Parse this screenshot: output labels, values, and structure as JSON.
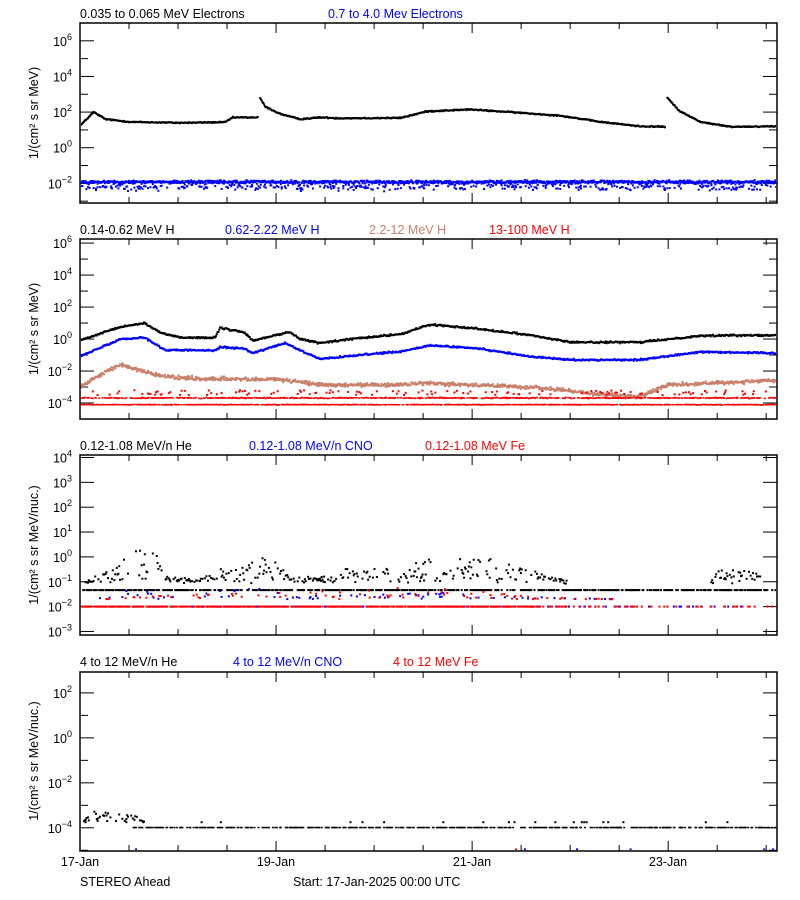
{
  "colors": {
    "black": "#000000",
    "blue": "#0000ff",
    "brown": "#c8806a",
    "red": "#ff0000"
  },
  "x_axis": {
    "type": "date",
    "xlim": [
      "2025-01-17 00:00",
      "2025-01-24 02:40"
    ],
    "tick_labels": [
      "17-Jan",
      "19-Jan",
      "21-Jan",
      "23-Jan"
    ],
    "tick_days": [
      0,
      2,
      4,
      6
    ]
  },
  "footer": {
    "spacecraft": "STEREO Ahead",
    "start": "Start: 17-Jan-2025 00:00 UTC"
  },
  "chart_data": [
    {
      "type": "scatter",
      "ylabel": "1/(cm² s sr MeV)",
      "yscale": "log",
      "ylim": [
        0.00079,
        10000000
      ],
      "ytick_exponents": [
        6,
        4,
        2,
        0,
        -2
      ],
      "series": [
        {
          "name": "0.035 to 0.065 MeV Electrons",
          "color": "#000000",
          "points": [
            [
              0,
              17
            ],
            [
              0.14,
              100
            ],
            [
              0.26,
              40
            ],
            [
              0.51,
              28
            ],
            [
              1.02,
              25
            ],
            [
              1.48,
              27
            ],
            [
              1.56,
              50
            ],
            [
              1.82,
              50
            ],
            null,
            [
              1.83,
              700
            ],
            [
              1.89,
              200
            ],
            [
              2.04,
              80
            ],
            [
              2.24,
              40
            ],
            [
              2.45,
              50
            ],
            [
              2.65,
              45
            ],
            [
              3.27,
              47
            ],
            [
              3.54,
              110
            ],
            [
              3.98,
              140
            ],
            [
              4.39,
              100
            ],
            [
              4.9,
              63
            ],
            [
              5.31,
              28
            ],
            [
              5.71,
              16
            ],
            [
              5.97,
              15
            ],
            null,
            [
              5.99,
              630
            ],
            [
              6.12,
              110
            ],
            [
              6.33,
              28
            ],
            [
              6.63,
              15
            ],
            [
              7.11,
              16
            ]
          ]
        },
        {
          "name": "0.7 to 4.0 Mev Electrons",
          "color": "#0000ff",
          "points": [
            [
              0,
              0.012
            ],
            [
              7.11,
              0.012
            ]
          ]
        }
      ]
    },
    {
      "type": "scatter",
      "ylabel": "1/(cm² s sr MeV)",
      "yscale": "log",
      "ylim": [
        1e-05,
        1800000
      ],
      "ytick_exponents": [
        6,
        4,
        2,
        0,
        -2,
        -4
      ],
      "series": [
        {
          "name": "0.14-0.62 MeV H",
          "color": "#000000",
          "points": [
            [
              0,
              0.8
            ],
            [
              0.41,
              5.6
            ],
            [
              0.66,
              10
            ],
            [
              0.82,
              2.5
            ],
            [
              1.02,
              1.26
            ],
            [
              1.38,
              1.2
            ],
            [
              1.43,
              5
            ],
            [
              1.68,
              2.5
            ],
            [
              1.76,
              0.8
            ],
            [
              2.14,
              2.8
            ],
            [
              2.24,
              1
            ],
            [
              2.45,
              0.56
            ],
            [
              2.76,
              1
            ],
            [
              3.27,
              2
            ],
            [
              3.57,
              8
            ],
            [
              3.98,
              5
            ],
            [
              4.59,
              1.8
            ],
            [
              5.0,
              0.63
            ],
            [
              5.71,
              0.63
            ],
            [
              6.33,
              1.6
            ],
            [
              7.11,
              1.8
            ]
          ]
        },
        {
          "name": "0.62-2.22 MeV H",
          "color": "#0000ff",
          "points": [
            [
              0,
              0.08
            ],
            [
              0.41,
              1
            ],
            [
              0.66,
              1.26
            ],
            [
              0.87,
              0.2
            ],
            [
              1.38,
              0.2
            ],
            [
              1.43,
              0.32
            ],
            [
              1.68,
              0.25
            ],
            [
              1.76,
              0.13
            ],
            [
              2.09,
              0.56
            ],
            [
              2.24,
              0.2
            ],
            [
              2.45,
              0.056
            ],
            [
              3.06,
              0.13
            ],
            [
              3.27,
              0.16
            ],
            [
              3.57,
              0.4
            ],
            [
              4.08,
              0.25
            ],
            [
              4.59,
              0.08
            ],
            [
              5.0,
              0.05
            ],
            [
              5.71,
              0.05
            ],
            [
              6.33,
              0.16
            ],
            [
              7.11,
              0.13
            ]
          ]
        },
        {
          "name": "2.2-12 MeV H",
          "color": "#c8806a",
          "points": [
            [
              0,
              0.001
            ],
            [
              0.2,
              0.0056
            ],
            [
              0.41,
              0.025
            ],
            [
              0.82,
              0.005
            ],
            [
              1.22,
              0.0032
            ],
            [
              2.04,
              0.003
            ],
            [
              2.45,
              0.0014
            ],
            [
              3.16,
              0.0013
            ],
            [
              3.57,
              0.0018
            ],
            [
              4.69,
              0.0009
            ],
            [
              5.31,
              0.00035
            ],
            [
              5.71,
              0.00025
            ],
            [
              6.0,
              0.0014
            ],
            [
              7.11,
              0.0025
            ]
          ]
        },
        {
          "name": "13-100 MeV H",
          "color": "#ff0000",
          "points": [
            [
              0,
              0.0001
            ],
            [
              7.11,
              0.0001
            ]
          ]
        }
      ]
    },
    {
      "type": "scatter",
      "ylabel": "1/(cm² s sr MeV/nuc.)",
      "yscale": "log",
      "ylim": [
        0.00072,
        12600
      ],
      "ytick_exponents": [
        4,
        3,
        2,
        1,
        0,
        -1,
        -2,
        -3
      ],
      "series": [
        {
          "name": "0.12-1.08 MeV/n He",
          "color": "#000000",
          "floor": 0.046,
          "points": [
            [
              0,
              0.046
            ],
            [
              0.3,
              0.2
            ],
            [
              0.61,
              2.5
            ],
            [
              0.77,
              1.6
            ],
            [
              0.87,
              0.1
            ],
            [
              1.4,
              0.1
            ],
            [
              1.45,
              0.3
            ],
            [
              1.68,
              0.25
            ],
            [
              1.94,
              1.26
            ],
            [
              2.14,
              0.1
            ],
            [
              2.65,
              0.1
            ],
            [
              2.7,
              0.25
            ],
            [
              3.27,
              0.25
            ],
            [
              3.57,
              0.6
            ],
            [
              3.88,
              0.8
            ],
            [
              4.29,
              0.4
            ],
            [
              4.59,
              0.2
            ],
            [
              4.9,
              0.1
            ],
            [
              5.0,
              0.046
            ],
            [
              6.4,
              0.046
            ],
            [
              6.5,
              0.25
            ],
            [
              6.9,
              0.25
            ],
            [
              7.0,
              0.046
            ],
            [
              7.11,
              0.046
            ]
          ]
        },
        {
          "name": "0.12-1.08 MeV/n CNO",
          "color": "#0000ff",
          "floor": 0.01,
          "points": [
            [
              0,
              0.01
            ],
            [
              0.4,
              0.045
            ],
            [
              0.8,
              0.03
            ],
            [
              1.9,
              0.05
            ],
            [
              2.1,
              0.02
            ],
            [
              3.6,
              0.03
            ],
            [
              4.6,
              0.02
            ],
            [
              7.11,
              0.01
            ]
          ]
        },
        {
          "name": "0.12-1.08 MeV Fe",
          "color": "#ff0000",
          "floor": 0.01,
          "points": [
            [
              0,
              0.01
            ],
            [
              0.4,
              0.02
            ],
            [
              1.9,
              0.03
            ],
            [
              3.6,
              0.05
            ],
            [
              4.6,
              0.02
            ],
            [
              7.11,
              0.01
            ]
          ]
        }
      ]
    },
    {
      "type": "scatter",
      "ylabel": "1/(cm² s sr MeV/nuc.)",
      "yscale": "log",
      "ylim": [
        9.3e-06,
        850
      ],
      "ytick_exponents": [
        2,
        0,
        -2,
        -4
      ],
      "series": [
        {
          "name": "4 to 12 MeV/n He",
          "color": "#000000",
          "floor": 0.0001,
          "points": [
            [
              0,
              0.0001
            ],
            [
              0.1,
              0.0005
            ],
            [
              0.3,
              0.0006
            ],
            [
              0.6,
              0.0003
            ],
            [
              0.7,
              0.0001
            ],
            [
              7.11,
              0.0001
            ]
          ]
        },
        {
          "name": "4 to 12 MeV/n CNO",
          "color": "#0000ff",
          "floor": 1.1e-05,
          "points": [
            [
              0,
              1.1e-05
            ],
            [
              7.11,
              1.1e-05
            ]
          ]
        },
        {
          "name": "4 to 12 MeV Fe",
          "color": "#ff0000",
          "floor": 1.1e-05,
          "points": [
            [
              0,
              1.1e-05
            ],
            [
              7.11,
              1.1e-05
            ]
          ]
        }
      ]
    }
  ]
}
